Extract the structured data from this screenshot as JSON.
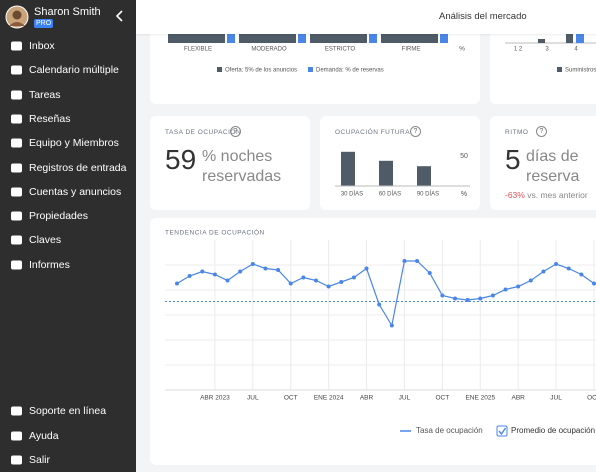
{
  "sidebar": {
    "user_name": "Sharon Smith",
    "badge": "PRO",
    "menu": [
      "Inbox",
      "Calendario múltiple",
      "Tareas",
      "Reseñas",
      "Equipo y Miembros",
      "Registros de entrada",
      "Cuentas y anuncios",
      "Propiedades",
      "Claves",
      "Informes"
    ],
    "footer_menu": [
      "Soporte en línea",
      "Ayuda",
      "Salir"
    ]
  },
  "header": {
    "title": "Análisis del mercado"
  },
  "policy_card": {
    "categories": [
      "FLEXIBLE",
      "MODERADO",
      "ESTRICTO",
      "FIRME"
    ],
    "unit": "%",
    "legend": [
      "Oferta: 5% de los anuncios",
      "Demanda: % de reservas"
    ]
  },
  "supply_card": {
    "tick_labels": [
      "1 2",
      "3",
      "4"
    ],
    "legend": "Suministros"
  },
  "occupancy_card": {
    "title": "TASA DE OCUPACIÓN",
    "help": "?",
    "value": 59,
    "text": "% noches reservadas"
  },
  "pace_card": {
    "title": "RITMO",
    "help": "?",
    "value": 5,
    "text": "días de reserva",
    "change": "-63%",
    "change_text": "vs. mes anterior"
  },
  "chart_data": [
    {
      "type": "bar",
      "title": "OCUPACIÓN FUTURA",
      "help": "?",
      "categories": [
        "30 DÍAS",
        "60 DÍAS",
        "90 DÍAS"
      ],
      "values": [
        57,
        42,
        33
      ],
      "color": "#4f5b66",
      "ylim": [
        0,
        60
      ],
      "yticks": [
        50
      ],
      "y_unit": "%"
    },
    {
      "type": "line",
      "title": "TENDENCIA DE OCUPACIÓN",
      "categories": [
        null,
        null,
        null,
        "ABR 2023",
        null,
        null,
        "JUL",
        null,
        null,
        "OCT",
        null,
        null,
        "ENE 2024",
        null,
        null,
        "ABR",
        null,
        null,
        "JUL",
        null,
        null,
        "OCT",
        null,
        null,
        "ENE 2025",
        null,
        null,
        "ABR",
        null,
        null,
        "JUL",
        null,
        null,
        "OCT"
      ],
      "series": [
        {
          "name": "Tasa de ocupación",
          "color": "#4a86e8",
          "values": [
            71,
            76,
            79,
            77,
            73,
            79,
            84,
            81,
            80,
            71,
            75,
            73,
            69,
            72,
            75,
            81,
            57,
            43,
            86,
            86,
            78,
            63,
            61,
            60,
            61,
            63,
            67,
            69,
            73,
            79,
            84,
            81,
            77,
            71
          ]
        }
      ],
      "average": {
        "name": "Promedio de ocupación",
        "value": 59,
        "checked": true
      },
      "ylim": [
        0,
        100
      ],
      "grid": true
    }
  ]
}
